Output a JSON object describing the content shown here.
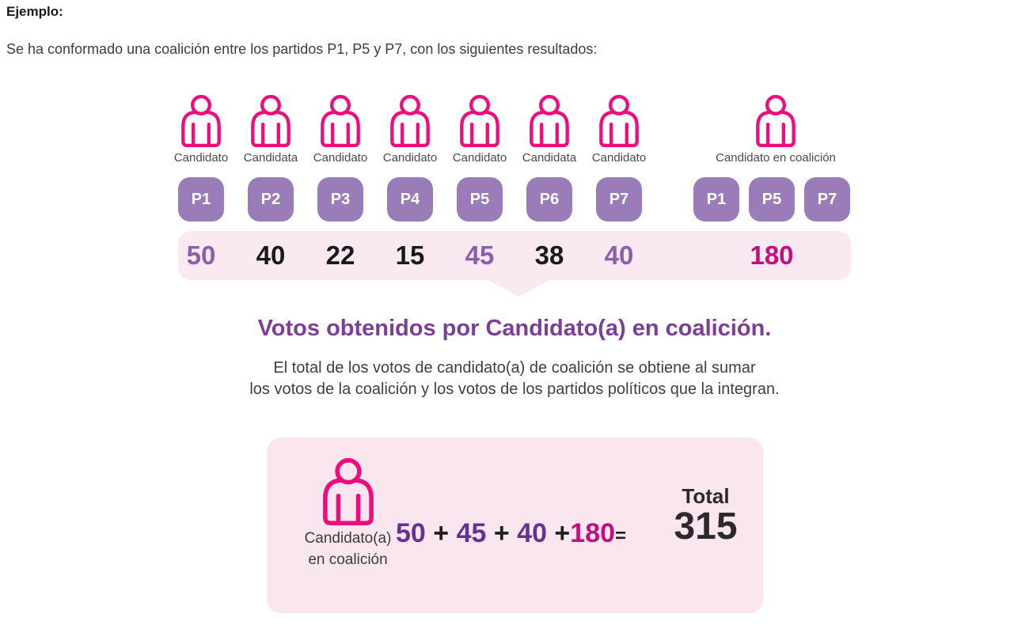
{
  "page": {
    "heading": "Ejemplo:",
    "intro": "Se ha conformado una coalición entre los partidos P1, P5 y P7, con los siguientes resultados:"
  },
  "candidates": [
    {
      "label": "Candidato",
      "party": "P1",
      "votes": "50",
      "tone": "purple"
    },
    {
      "label": "Candidata",
      "party": "P2",
      "votes": "40",
      "tone": "black"
    },
    {
      "label": "Candidato",
      "party": "P3",
      "votes": "22",
      "tone": "black"
    },
    {
      "label": "Candidato",
      "party": "P4",
      "votes": "15",
      "tone": "black"
    },
    {
      "label": "Candidato",
      "party": "P5",
      "votes": "45",
      "tone": "purple"
    },
    {
      "label": "Candidata",
      "party": "P6",
      "votes": "38",
      "tone": "black"
    },
    {
      "label": "Candidato",
      "party": "P7",
      "votes": "40",
      "tone": "purple"
    }
  ],
  "coalition": {
    "label": "Candidato en coalición",
    "parties": [
      "P1",
      "P5",
      "P7"
    ],
    "votes": "180",
    "tone": "magenta"
  },
  "callout": {
    "title": "Votos obtenidos por Candidato(a) en coalición.",
    "line1": "El total de los votos de candidato(a) de coalición se obtiene al sumar",
    "line2": "los votos de la coalición y los votos de los partidos políticos que la integran."
  },
  "summary": {
    "figure_label_line1": "Candidato(a)",
    "figure_label_line2": "en coalición",
    "equation": [
      {
        "text": "50",
        "tone": "purple"
      },
      {
        "text": " + ",
        "tone": "dark"
      },
      {
        "text": "45",
        "tone": "purple"
      },
      {
        "text": " + ",
        "tone": "dark"
      },
      {
        "text": "40",
        "tone": "purple"
      },
      {
        "text": " +",
        "tone": "dark"
      },
      {
        "text": "180",
        "tone": "magenta"
      },
      {
        "text": "=",
        "tone": "dark",
        "small": true
      }
    ],
    "total_label": "Total",
    "total_value": "315"
  },
  "colors": {
    "icon_pink": "#EE0D7D",
    "badge_purple": "#9A7CB8",
    "strip_pink": "#FBE9F1",
    "box_pink": "#F9E6EE",
    "vote_purple": "#8A5FAC",
    "vote_black": "#1A1A1A",
    "vote_magenta": "#C1107E",
    "title_purple": "#7D3E98",
    "equation_purple": "#653294",
    "text_dark": "#3F3F3F"
  }
}
